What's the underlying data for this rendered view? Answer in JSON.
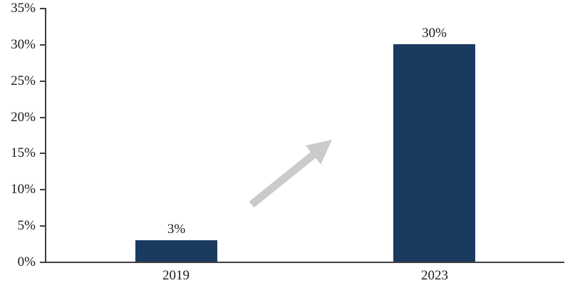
{
  "chart_data": {
    "type": "bar",
    "title": "",
    "xlabel": "",
    "ylabel": "",
    "categories": [
      "2019",
      "2023"
    ],
    "values": [
      3,
      30
    ],
    "value_labels": [
      "3%",
      "30%"
    ],
    "ylim": [
      0,
      35
    ],
    "y_tick_step": 5,
    "y_tick_labels": [
      "35%",
      "30%",
      "25%",
      "20%",
      "15%",
      "10%",
      "5%",
      "0%"
    ],
    "grid": false,
    "legend_position": "none",
    "annotations": [
      {
        "name": "upward-trend-arrow",
        "from_category": "2019",
        "to_category": "2023",
        "direction": "up-right"
      }
    ],
    "colors": {
      "bar": "#1b3a5f",
      "axis": "#3f3f3f",
      "text": "#1a1a1a",
      "arrow": "#c9cbcd",
      "background": "#ffffff"
    }
  }
}
